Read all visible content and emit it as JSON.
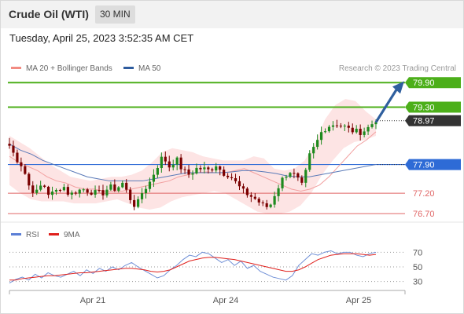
{
  "header": {
    "title": "Crude Oil (WTI)",
    "interval": "30 MIN",
    "timestamp": "Tuesday, April 25, 2023 3:52:35 AM CET"
  },
  "colors": {
    "up": "#1e8a1e",
    "down": "#7a0000",
    "support": "#e06666",
    "resistance": "#4caf1a",
    "pivot": "#2e6bd6",
    "price_tag": "#333333",
    "arrow": "#2f5f9e",
    "bollinger_fill": "#fde4e4",
    "ma20": "#f2a0a0",
    "ma50": "#5a7ab8",
    "rsi": "#6f8fd6",
    "rsi_ma": "#e0201c"
  },
  "chart_data": [
    {
      "type": "line",
      "legend": [
        {
          "label": "MA 20 + Bollinger Bands",
          "color": "#f28b82"
        },
        {
          "label": "MA 50",
          "color": "#2e5c9e"
        }
      ],
      "watermark": "Research © 2023 Trading Central",
      "x_ticks": [
        "Apr 21",
        "Apr 24",
        "Apr 25"
      ],
      "y_range": [
        76.55,
        80.0
      ],
      "current_price": 78.97,
      "levels": [
        {
          "value": 79.9,
          "label": "79.90",
          "kind": "resistance"
        },
        {
          "value": 79.3,
          "label": "79.30",
          "kind": "resistance"
        },
        {
          "value": 77.9,
          "label": "77.90",
          "kind": "pivot"
        },
        {
          "value": 77.2,
          "label": "77.20",
          "kind": "support"
        },
        {
          "value": 76.7,
          "label": "76.70",
          "kind": "support"
        }
      ],
      "close_path": [
        78.36,
        78.05,
        77.85,
        77.35,
        77.2,
        77.45,
        77.15,
        77.25,
        77.4,
        77.15,
        77.25,
        77.3,
        77.25,
        77.2,
        77.2,
        77.35,
        77.3,
        77.45,
        77.1,
        76.85,
        77.25,
        77.45,
        77.8,
        78.1,
        77.85,
        78.05,
        77.75,
        77.65,
        77.8,
        77.8,
        77.75,
        77.9,
        77.7,
        77.65,
        77.45,
        77.25,
        77.15,
        77.05,
        76.9,
        76.85,
        77.25,
        77.55,
        77.75,
        77.6,
        77.35,
        78.1,
        78.4,
        78.75,
        78.85,
        78.9,
        78.85,
        78.75,
        78.7,
        78.7,
        78.82,
        79.0
      ],
      "ma20": [
        78.1,
        77.95,
        77.85,
        77.75,
        77.6,
        77.5,
        77.45,
        77.35,
        77.3,
        77.3,
        77.25,
        77.25,
        77.25,
        77.3,
        77.35,
        77.4,
        77.45,
        77.5,
        77.6,
        77.65,
        77.7,
        77.72,
        77.7,
        77.7,
        77.75,
        77.8,
        77.7,
        77.6,
        77.5,
        77.4,
        77.3,
        77.25,
        77.3,
        77.4,
        77.6,
        77.85,
        78.1,
        78.35,
        78.5,
        78.7
      ],
      "ma50": [
        78.4,
        78.25,
        78.15,
        78.0,
        77.9,
        77.8,
        77.7,
        77.6,
        77.55,
        77.5,
        77.5,
        77.5,
        77.5,
        77.55,
        77.6,
        77.65,
        77.7,
        77.7,
        77.7,
        77.7,
        77.72,
        77.75,
        77.75,
        77.72,
        77.68,
        77.62,
        77.6,
        77.6,
        77.65,
        77.7,
        77.75,
        77.8,
        77.85,
        77.9
      ],
      "bb_upper": [
        78.6,
        78.45,
        78.3,
        78.1,
        77.9,
        77.75,
        77.6,
        77.55,
        77.5,
        77.55,
        77.6,
        77.6,
        77.65,
        77.75,
        77.95,
        78.2,
        78.3,
        78.25,
        78.2,
        78.1,
        78.05,
        78.0,
        78.0,
        78.0,
        78.1,
        78.05,
        77.8,
        77.75,
        77.8,
        78.0,
        78.4,
        79.0,
        79.35,
        79.5,
        79.45,
        79.2,
        79.0
      ],
      "bb_lower": [
        77.4,
        77.2,
        77.05,
        77.0,
        77.0,
        77.0,
        76.95,
        76.95,
        76.95,
        77.0,
        77.05,
        76.95,
        76.85,
        76.8,
        76.85,
        77.0,
        77.1,
        77.15,
        77.2,
        77.25,
        77.2,
        77.05,
        76.9,
        76.75,
        76.7,
        76.7,
        76.75,
        76.9,
        77.2,
        77.65,
        78.0,
        78.3,
        78.45,
        78.5,
        78.6
      ]
    },
    {
      "type": "line",
      "legend": [
        {
          "label": "RSI",
          "color": "#5b7fd6"
        },
        {
          "label": "9MA",
          "color": "#e0201c"
        }
      ],
      "y_ticks": [
        70,
        50,
        30
      ],
      "y_range": [
        20,
        80
      ],
      "rsi": [
        28,
        33,
        36,
        32,
        40,
        35,
        42,
        38,
        36,
        40,
        44,
        38,
        46,
        41,
        48,
        44,
        50,
        46,
        52,
        56,
        50,
        45,
        40,
        35,
        38,
        46,
        52,
        60,
        66,
        64,
        70,
        68,
        62,
        56,
        60,
        52,
        58,
        48,
        52,
        44,
        40,
        36,
        34,
        32,
        38,
        52,
        60,
        68,
        66,
        70,
        72,
        68,
        70,
        70,
        66,
        64,
        68,
        70
      ],
      "rsi_ma": [
        32,
        32,
        34,
        35,
        36,
        37,
        38,
        38,
        39,
        40,
        41,
        42,
        42,
        43,
        44,
        45,
        46,
        47,
        48,
        48,
        47,
        46,
        44,
        43,
        44,
        46,
        50,
        54,
        58,
        60,
        62,
        63,
        63,
        62,
        61,
        60,
        58,
        56,
        54,
        52,
        50,
        48,
        46,
        44,
        44,
        46,
        50,
        55,
        60,
        63,
        66,
        67,
        68,
        68,
        68,
        67,
        66,
        67
      ]
    }
  ]
}
